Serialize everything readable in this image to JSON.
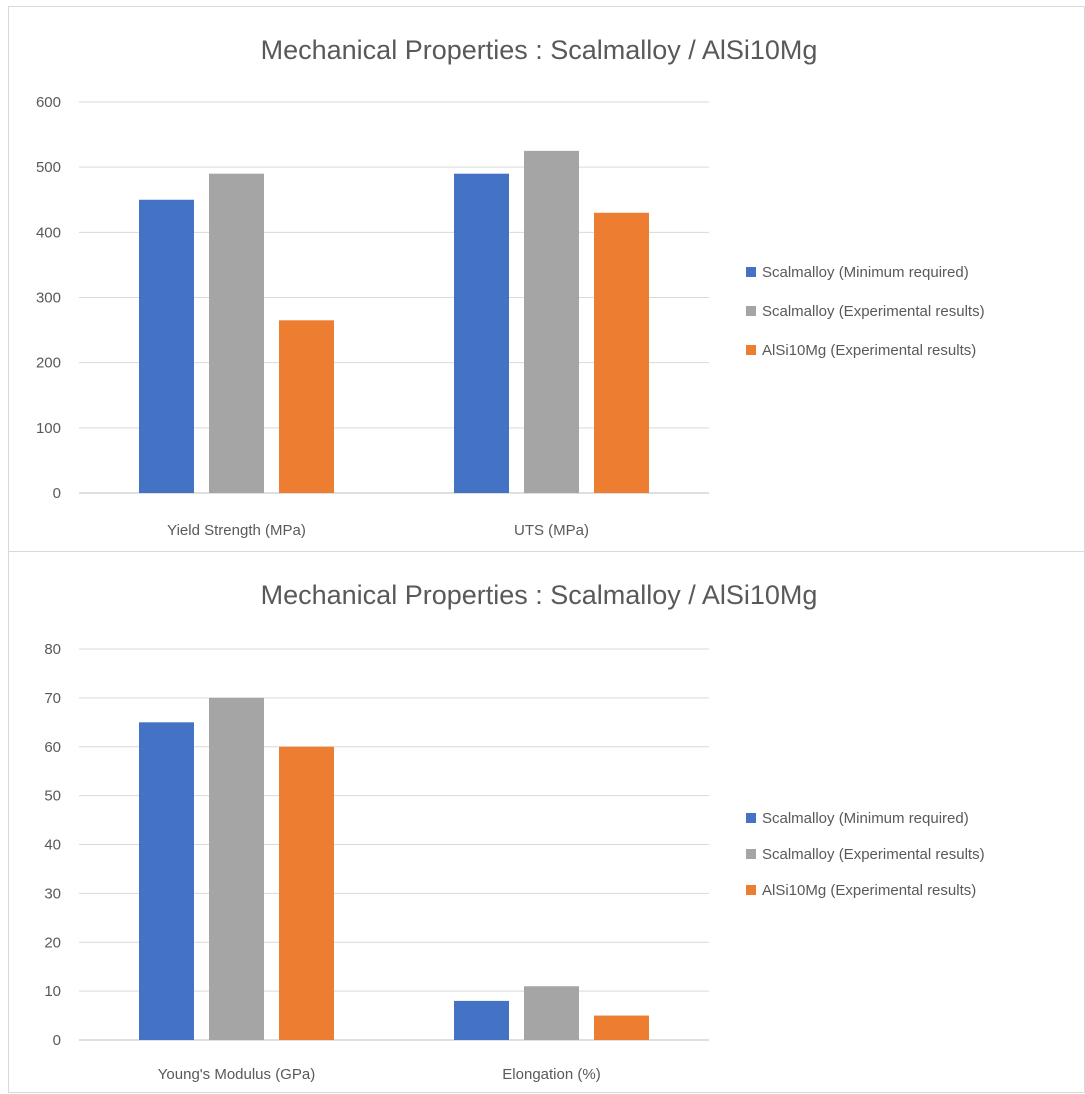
{
  "chart_data": [
    {
      "type": "bar",
      "title": "Mechanical Properties : Scalmalloy / AlSi10Mg",
      "categories": [
        "Yield Strength (MPa)",
        "UTS (MPa)"
      ],
      "series": [
        {
          "name": "Scalmalloy (Minimum required)",
          "color": "#4472c4",
          "values": [
            450,
            490
          ]
        },
        {
          "name": "Scalmalloy (Experimental results)",
          "color": "#a5a5a5",
          "values": [
            490,
            525
          ]
        },
        {
          "name": "AlSi10Mg (Experimental results)",
          "color": "#ed7d31",
          "values": [
            265,
            430
          ]
        }
      ],
      "ylim": [
        0,
        600
      ],
      "yticks": [
        "0",
        "100",
        "200",
        "300",
        "400",
        "500",
        "600"
      ],
      "grid": true,
      "legend": "right"
    },
    {
      "type": "bar",
      "title": "Mechanical Properties : Scalmalloy / AlSi10Mg",
      "categories": [
        "Young's Modulus (GPa)",
        "Elongation (%)"
      ],
      "series": [
        {
          "name": "Scalmalloy (Minimum required)",
          "color": "#4472c4",
          "values": [
            65,
            8
          ]
        },
        {
          "name": "Scalmalloy (Experimental results)",
          "color": "#a5a5a5",
          "values": [
            70,
            11
          ]
        },
        {
          "name": "AlSi10Mg (Experimental results)",
          "color": "#ed7d31",
          "values": [
            60,
            5
          ]
        }
      ],
      "ylim": [
        0,
        80
      ],
      "yticks": [
        "0",
        "10",
        "20",
        "30",
        "40",
        "50",
        "60",
        "70",
        "80"
      ],
      "grid": true,
      "legend": "right"
    }
  ]
}
